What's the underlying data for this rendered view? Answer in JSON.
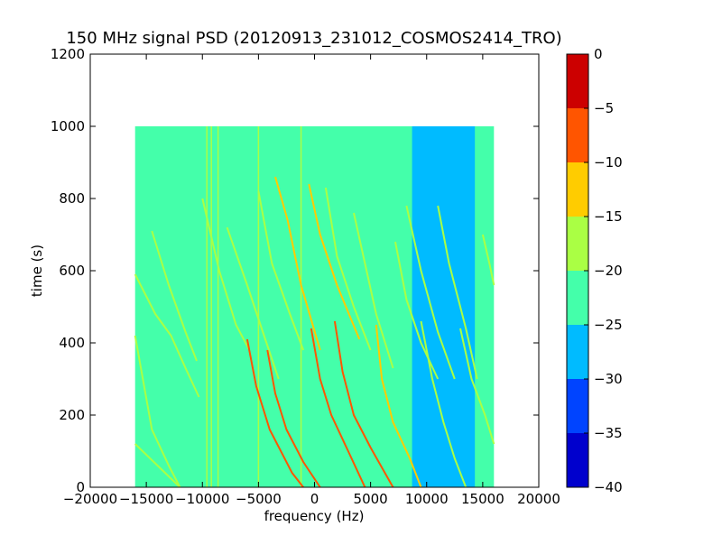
{
  "chart_data": {
    "type": "heatmap",
    "title": "150 MHz signal PSD (20120913_231012_COSMOS2414_TRO)",
    "xlabel": "frequency (Hz)",
    "ylabel": "time (s)",
    "xlim": [
      -20000,
      20000
    ],
    "ylim": [
      0,
      1200
    ],
    "xticks": [
      -20000,
      -15000,
      -10000,
      -5000,
      0,
      5000,
      10000,
      15000,
      20000
    ],
    "xtick_labels": [
      "−20000",
      "−15000",
      "−10000",
      "−5000",
      "0",
      "5000",
      "10000",
      "15000",
      "20000"
    ],
    "yticks": [
      0,
      200,
      400,
      600,
      800,
      1000,
      1200
    ],
    "ytick_labels": [
      "0",
      "200",
      "400",
      "600",
      "800",
      "1000",
      "1200"
    ],
    "data_extent": {
      "x": [
        -16000,
        16000
      ],
      "y": [
        0,
        1000
      ]
    },
    "grid": false,
    "background_level": -22.5,
    "low_level_region": {
      "x": [
        8700,
        14300
      ],
      "y": [
        0,
        1000
      ],
      "level": -27.5
    },
    "colorbar": {
      "levels": [
        -40,
        -35,
        -30,
        -25,
        -20,
        -15,
        -10,
        -5,
        0
      ],
      "tick_labels": [
        "−40",
        "−35",
        "−30",
        "−25",
        "−20",
        "−15",
        "−10",
        "−5",
        "0"
      ],
      "colors": [
        "#0000cd",
        "#0044ff",
        "#00bbff",
        "#44ffaa",
        "#aaff44",
        "#ffcc00",
        "#ff5500",
        "#cc0000"
      ]
    },
    "vertical_lines": [
      {
        "x": -9600,
        "level": -17.5
      },
      {
        "x": -9200,
        "level": -17.5
      },
      {
        "x": -8600,
        "level": -17.5
      },
      {
        "x": -5000,
        "level": -17.5
      },
      {
        "x": -1200,
        "level": -17.5
      }
    ],
    "tracks": [
      {
        "points": [
          [
            -16000,
            590
          ],
          [
            -14200,
            480
          ],
          [
            -12800,
            420
          ],
          [
            -11500,
            330
          ],
          [
            -10300,
            250
          ]
        ],
        "level": -17.5
      },
      {
        "points": [
          [
            -16000,
            120
          ],
          [
            -14000,
            60
          ],
          [
            -12000,
            0
          ]
        ],
        "level": -17.5
      },
      {
        "points": [
          [
            -16000,
            420
          ],
          [
            -14500,
            160
          ],
          [
            -13000,
            60
          ],
          [
            -12000,
            0
          ]
        ],
        "level": -17.5
      },
      {
        "points": [
          [
            -14500,
            710
          ],
          [
            -13000,
            560
          ],
          [
            -11500,
            430
          ],
          [
            -10500,
            350
          ]
        ],
        "level": -17.5
      },
      {
        "points": [
          [
            -10000,
            800
          ],
          [
            -8500,
            600
          ],
          [
            -7000,
            450
          ],
          [
            -5800,
            380
          ]
        ],
        "level": -17.5
      },
      {
        "points": [
          [
            -7800,
            720
          ],
          [
            -6000,
            560
          ],
          [
            -4500,
            420
          ],
          [
            -3200,
            300
          ]
        ],
        "level": -17.5
      },
      {
        "points": [
          [
            -6000,
            410
          ],
          [
            -5200,
            280
          ],
          [
            -4000,
            160
          ],
          [
            -2000,
            40
          ],
          [
            -1000,
            0
          ]
        ],
        "level": -7.5
      },
      {
        "points": [
          [
            -5000,
            820
          ],
          [
            -3800,
            620
          ],
          [
            -2200,
            480
          ],
          [
            -1000,
            380
          ]
        ],
        "level": -17.5
      },
      {
        "points": [
          [
            -3500,
            860
          ],
          [
            -2400,
            740
          ],
          [
            -1200,
            560
          ],
          [
            500,
            380
          ]
        ],
        "level": -12.5
      },
      {
        "points": [
          [
            -4200,
            380
          ],
          [
            -3500,
            260
          ],
          [
            -2500,
            160
          ],
          [
            -1000,
            70
          ],
          [
            500,
            0
          ]
        ],
        "level": -7.5
      },
      {
        "points": [
          [
            -500,
            840
          ],
          [
            500,
            700
          ],
          [
            2000,
            560
          ],
          [
            4000,
            410
          ]
        ],
        "level": -12.5
      },
      {
        "points": [
          [
            -300,
            440
          ],
          [
            500,
            300
          ],
          [
            1500,
            200
          ],
          [
            3000,
            100
          ],
          [
            4500,
            0
          ]
        ],
        "level": -7.5
      },
      {
        "points": [
          [
            1000,
            830
          ],
          [
            2000,
            640
          ],
          [
            3500,
            500
          ],
          [
            5000,
            380
          ]
        ],
        "level": -17.5
      },
      {
        "points": [
          [
            1800,
            460
          ],
          [
            2500,
            320
          ],
          [
            3500,
            200
          ],
          [
            5000,
            110
          ],
          [
            7000,
            0
          ]
        ],
        "level": -7.5
      },
      {
        "points": [
          [
            3500,
            760
          ],
          [
            4500,
            620
          ],
          [
            5500,
            480
          ],
          [
            7000,
            330
          ]
        ],
        "level": -17.5
      },
      {
        "points": [
          [
            5500,
            450
          ],
          [
            6000,
            300
          ],
          [
            7000,
            180
          ],
          [
            8500,
            80
          ],
          [
            9500,
            0
          ]
        ],
        "level": -12.5
      },
      {
        "points": [
          [
            7200,
            680
          ],
          [
            8200,
            520
          ],
          [
            9500,
            400
          ],
          [
            11000,
            300
          ]
        ],
        "level": -17.5
      },
      {
        "points": [
          [
            8200,
            780
          ],
          [
            9500,
            600
          ],
          [
            11000,
            430
          ],
          [
            12500,
            300
          ]
        ],
        "level": -17.5
      },
      {
        "points": [
          [
            9500,
            460
          ],
          [
            10500,
            300
          ],
          [
            11500,
            180
          ],
          [
            12500,
            80
          ],
          [
            13500,
            0
          ]
        ],
        "level": -17.5
      },
      {
        "points": [
          [
            11000,
            780
          ],
          [
            12000,
            620
          ],
          [
            13500,
            440
          ],
          [
            14500,
            300
          ]
        ],
        "level": -17.5
      },
      {
        "points": [
          [
            13000,
            440
          ],
          [
            14000,
            300
          ],
          [
            15200,
            200
          ],
          [
            16000,
            120
          ]
        ],
        "level": -17.5
      },
      {
        "points": [
          [
            15000,
            700
          ],
          [
            15600,
            620
          ],
          [
            16000,
            560
          ]
        ],
        "level": -17.5
      }
    ]
  }
}
